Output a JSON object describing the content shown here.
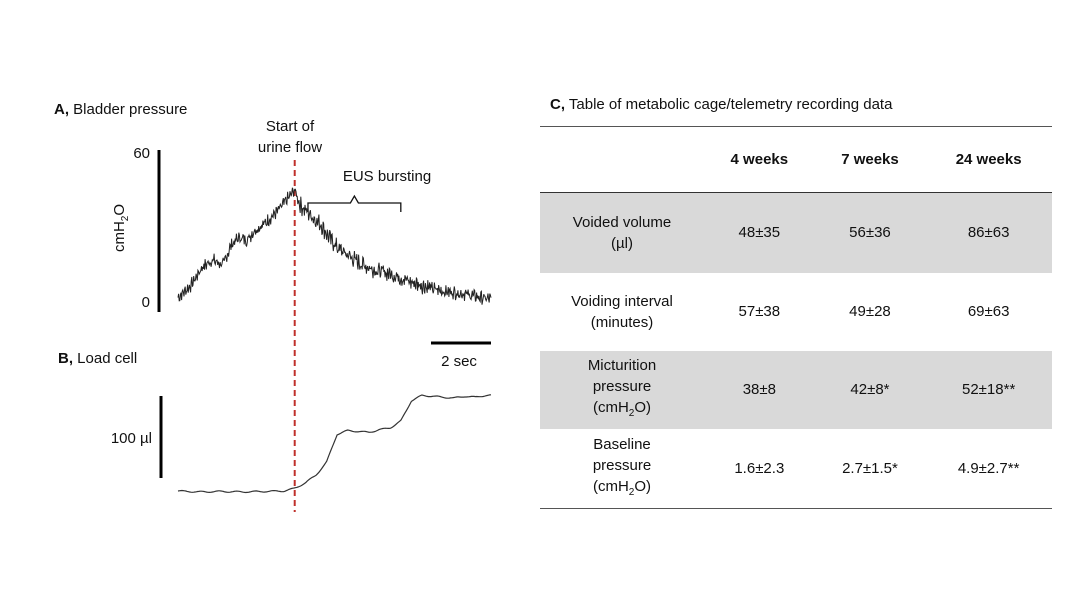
{
  "panels": {
    "a": {
      "letter": "A,",
      "title": "Bladder pressure"
    },
    "b": {
      "letter": "B,",
      "title": "Load cell"
    },
    "c": {
      "letter": "C,",
      "title": "Table of metabolic cage/telemetry recording data"
    }
  },
  "chart_data": [
    {
      "type": "line",
      "panel": "A",
      "title": "Bladder pressure",
      "ylabel": "cmH2O",
      "ylim": [
        0,
        60
      ],
      "y_ticks": [
        "60",
        "0"
      ],
      "time_scale_bar": "2 sec",
      "x_range_sec": [
        0,
        11.8
      ],
      "annotations": {
        "start_of_urine_flow": {
          "text_line1": "Start of",
          "text_line2": "urine flow",
          "x_sec": 4.4
        },
        "eus_bursting": {
          "text": "EUS bursting",
          "x_start_sec": 4.9,
          "x_end_sec": 8.4
        }
      },
      "series": [
        {
          "x": [
            0,
            0.5,
            0.9,
            1.3,
            1.7,
            2.0,
            2.3,
            2.6,
            2.9,
            3.2,
            3.5,
            3.8,
            4.1,
            4.4,
            4.6,
            4.8,
            5.1,
            5.4,
            5.7,
            6.0,
            6.4,
            6.8,
            7.2,
            7.6,
            8.0,
            8.4,
            8.8,
            9.2,
            9.6,
            10.0,
            10.4,
            10.8,
            11.2,
            11.6
          ],
          "values": [
            1,
            6,
            13,
            16,
            14,
            22,
            25,
            24,
            28,
            30,
            33,
            36,
            40,
            44,
            38,
            36,
            33,
            30,
            25,
            21,
            18,
            15,
            13,
            11.5,
            10.5,
            9,
            7,
            6,
            4.5,
            3.5,
            3,
            2.5,
            1.5,
            0.5
          ]
        }
      ]
    },
    {
      "type": "line",
      "panel": "B",
      "title": "Load cell",
      "scale_bar": "100 µl",
      "x_range_sec": [
        0,
        11.8
      ],
      "series": [
        {
          "x": [
            0,
            0.8,
            1.6,
            2.4,
            3.2,
            4.0,
            4.4,
            4.8,
            5.2,
            5.6,
            6.0,
            6.4,
            6.8,
            7.2,
            7.6,
            8.0,
            8.4,
            8.8,
            9.2,
            9.6,
            10.0,
            10.4,
            10.8,
            11.2,
            11.6
          ],
          "values": [
            0,
            -2,
            -1,
            -2,
            -1,
            0,
            6,
            18,
            35,
            64,
            126,
            134,
            132,
            130,
            136,
            140,
            155,
            200,
            212,
            210,
            208,
            206,
            210,
            208,
            212
          ]
        }
      ]
    },
    {
      "type": "table",
      "panel": "C",
      "title": "Table of metabolic cage/telemetry recording data",
      "columns": [
        "4 weeks",
        "7 weeks",
        "24 weeks"
      ],
      "rows": [
        {
          "label_lines": [
            "Voided volume",
            "(µl)"
          ],
          "values": [
            "48±35",
            "56±36",
            "86±63"
          ],
          "shaded": true
        },
        {
          "label_lines": [
            "Voiding interval",
            "(minutes)"
          ],
          "values": [
            "57±38",
            "49±28",
            "69±63"
          ],
          "shaded": false
        },
        {
          "label_lines": [
            "Micturition",
            "pressure"
          ],
          "unit": {
            "pre": "(cmH",
            "sub": "2",
            "post": "O)"
          },
          "values": [
            "38±8",
            "42±8*",
            "52±18**"
          ],
          "shaded": true
        },
        {
          "label_lines": [
            "Baseline",
            "pressure"
          ],
          "unit": {
            "pre": "(cmH",
            "sub": "2",
            "post": "O)"
          },
          "values": [
            "1.6±2.3",
            "2.7±1.5*",
            "4.9±2.7**"
          ],
          "shaded": false
        }
      ]
    }
  ],
  "ylabel_parts": {
    "pre": "cmH",
    "sub": "2",
    "post": "O"
  },
  "colors": {
    "trace": "#222222",
    "marker": "#c0312b",
    "table_shade": "#d9d9d9"
  }
}
